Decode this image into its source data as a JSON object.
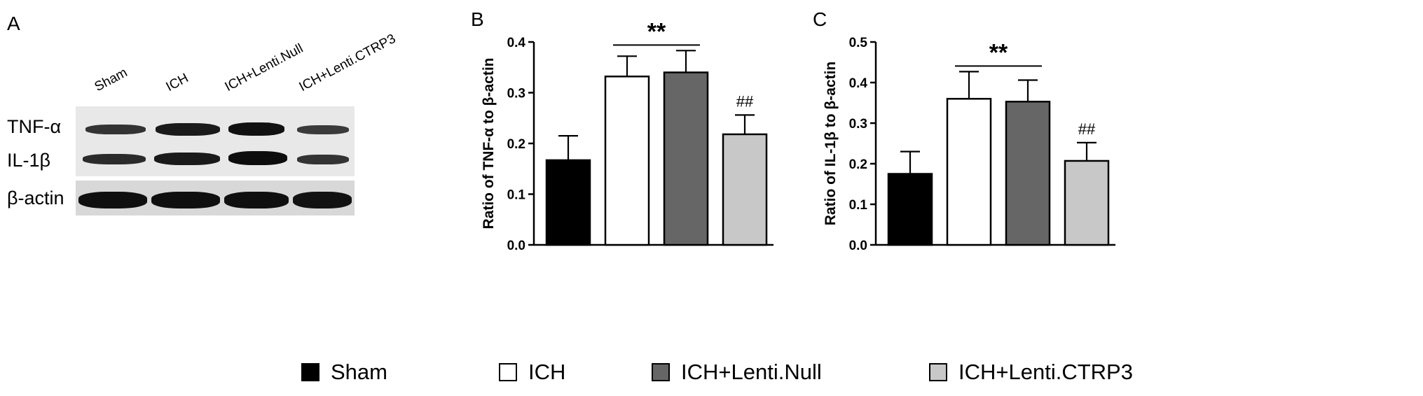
{
  "panels": {
    "a": "A",
    "b": "B",
    "c": "C"
  },
  "blot": {
    "lanes": [
      "Sham",
      "ICH",
      "ICH+Lenti.Null",
      "ICH+Lenti.CTRP3"
    ],
    "rows": [
      "TNF-α",
      "IL-1β",
      "β-actin"
    ]
  },
  "legend": [
    {
      "label": "Sham",
      "color": "#000000"
    },
    {
      "label": "ICH",
      "color": "#ffffff"
    },
    {
      "label": "ICH+Lenti.Null",
      "color": "#666666"
    },
    {
      "label": "ICH+Lenti.CTRP3",
      "color": "#c8c8c8"
    }
  ],
  "chart_data": [
    {
      "type": "bar",
      "panel": "B",
      "categories": [
        "Sham",
        "ICH",
        "ICH+Lenti.Null",
        "ICH+Lenti.CTRP3"
      ],
      "values": [
        0.167,
        0.332,
        0.34,
        0.218
      ],
      "errors": [
        0.048,
        0.04,
        0.043,
        0.038
      ],
      "colors": [
        "#000000",
        "#ffffff",
        "#666666",
        "#c8c8c8"
      ],
      "ylabel": "Ratio of TNF-α to β-actin",
      "ylim": [
        0,
        0.4
      ],
      "yticks": [
        "0.0",
        "0.1",
        "0.2",
        "0.3",
        "0.4"
      ],
      "annotations": {
        "significance": "**",
        "hash": "##"
      }
    },
    {
      "type": "bar",
      "panel": "C",
      "categories": [
        "Sham",
        "ICH",
        "ICH+Lenti.Null",
        "ICH+Lenti.CTRP3"
      ],
      "values": [
        0.175,
        0.36,
        0.353,
        0.207
      ],
      "errors": [
        0.055,
        0.067,
        0.053,
        0.045
      ],
      "colors": [
        "#000000",
        "#ffffff",
        "#666666",
        "#c8c8c8"
      ],
      "ylabel": "Ratio of IL-1β to β-actin",
      "ylim": [
        0,
        0.5
      ],
      "yticks": [
        "0.0",
        "0.1",
        "0.2",
        "0.3",
        "0.4",
        "0.5"
      ],
      "annotations": {
        "significance": "**",
        "hash": "##"
      }
    }
  ]
}
